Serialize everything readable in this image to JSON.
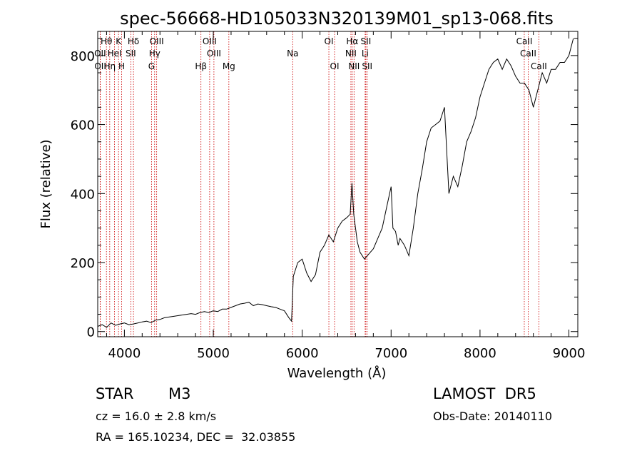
{
  "chart_data": {
    "type": "line",
    "title": "spec-56668-HD105033N320139M01_sp13-068.fits",
    "xlabel": "Wavelength (Å)",
    "ylabel": "Flux (relative)",
    "xlim": [
      3700,
      9100
    ],
    "ylim": [
      -15,
      870
    ],
    "xticks": [
      4000,
      5000,
      6000,
      7000,
      8000,
      9000
    ],
    "yticks": [
      0,
      200,
      400,
      600,
      800
    ],
    "grid": false,
    "line_color": "#000000",
    "marker_line_color": "#cc0000",
    "series": [
      {
        "x": [
          3700,
          3750,
          3800,
          3850,
          3900,
          3950,
          4000,
          4050,
          4100,
          4150,
          4200,
          4250,
          4300,
          4350,
          4400,
          4450,
          4500,
          4550,
          4600,
          4650,
          4700,
          4750,
          4800,
          4850,
          4900,
          4950,
          5000,
          5050,
          5100,
          5150,
          5200,
          5250,
          5300,
          5350,
          5400,
          5450,
          5500,
          5550,
          5600,
          5650,
          5700,
          5750,
          5800,
          5850,
          5880,
          5900,
          5950,
          6000,
          6050,
          6100,
          6150,
          6200,
          6250,
          6300,
          6350,
          6400,
          6450,
          6500,
          6540,
          6560,
          6580,
          6600,
          6620,
          6650,
          6700,
          6750,
          6800,
          6850,
          6900,
          6950,
          7000,
          7020,
          7050,
          7080,
          7100,
          7150,
          7200,
          7250,
          7300,
          7350,
          7400,
          7450,
          7500,
          7550,
          7600,
          7630,
          7650,
          7700,
          7750,
          7800,
          7850,
          7900,
          7950,
          8000,
          8050,
          8100,
          8150,
          8200,
          8250,
          8300,
          8350,
          8400,
          8450,
          8500,
          8550,
          8600,
          8650,
          8700,
          8750,
          8800,
          8850,
          8900,
          8950,
          9000,
          9050
        ],
        "values": [
          15,
          20,
          12,
          25,
          18,
          22,
          25,
          20,
          22,
          25,
          28,
          30,
          26,
          33,
          35,
          40,
          42,
          44,
          46,
          48,
          50,
          52,
          50,
          55,
          58,
          55,
          60,
          58,
          65,
          65,
          70,
          75,
          80,
          82,
          85,
          75,
          80,
          78,
          75,
          72,
          70,
          65,
          60,
          40,
          30,
          160,
          200,
          210,
          170,
          145,
          165,
          230,
          250,
          280,
          260,
          300,
          320,
          330,
          340,
          430,
          340,
          300,
          260,
          230,
          210,
          225,
          240,
          270,
          300,
          360,
          420,
          300,
          290,
          250,
          270,
          250,
          220,
          300,
          400,
          470,
          550,
          590,
          600,
          610,
          650,
          500,
          400,
          450,
          420,
          480,
          550,
          580,
          620,
          680,
          720,
          760,
          780,
          790,
          760,
          790,
          770,
          740,
          720,
          720,
          700,
          650,
          700,
          750,
          720,
          760,
          760,
          780,
          780,
          800,
          850
        ],
        "values_note": "rough",
        "name": ""
      }
    ]
  },
  "line_markers": [
    {
      "label": "Hθ",
      "wl": 3798,
      "row": 0
    },
    {
      "label": "OII",
      "wl": 3727,
      "row": 1
    },
    {
      "label": "OII",
      "wl": 3729,
      "row": 2
    },
    {
      "label": "HeI",
      "wl": 3889,
      "row": 1
    },
    {
      "label": "Hη",
      "wl": 3835,
      "row": 2
    },
    {
      "label": "K",
      "wl": 3934,
      "row": 0
    },
    {
      "label": "H",
      "wl": 3969,
      "row": 2
    },
    {
      "label": "Hδ",
      "wl": 4102,
      "row": 0
    },
    {
      "label": "SII",
      "wl": 4072,
      "row": 1
    },
    {
      "label": "OIII",
      "wl": 4363,
      "row": 0
    },
    {
      "label": "Hγ",
      "wl": 4340,
      "row": 1
    },
    {
      "label": "G",
      "wl": 4305,
      "row": 2
    },
    {
      "label": "Hβ",
      "wl": 4861,
      "row": 2
    },
    {
      "label": "OIII",
      "wl": 4959,
      "row": 0
    },
    {
      "label": "OIII",
      "wl": 5007,
      "row": 1
    },
    {
      "label": "Mg",
      "wl": 5175,
      "row": 2
    },
    {
      "label": "Na",
      "wl": 5893,
      "row": 1
    },
    {
      "label": "OI",
      "wl": 6300,
      "row": 0
    },
    {
      "label": "OI",
      "wl": 6364,
      "row": 2
    },
    {
      "label": "Hα",
      "wl": 6563,
      "row": 0
    },
    {
      "label": "NII",
      "wl": 6548,
      "row": 1
    },
    {
      "label": "NII",
      "wl": 6583,
      "row": 2
    },
    {
      "label": "SII",
      "wl": 6716,
      "row": 0
    },
    {
      "label": "Li",
      "wl": 6708,
      "row": 1
    },
    {
      "label": "SII",
      "wl": 6731,
      "row": 2
    },
    {
      "label": "CaII",
      "wl": 8498,
      "row": 0
    },
    {
      "label": "CaII",
      "wl": 8542,
      "row": 1
    },
    {
      "label": "CaII",
      "wl": 8662,
      "row": 2
    }
  ],
  "info": {
    "object_class": "STAR",
    "subclass": "M3",
    "cz": "cz = 16.0 ± 2.8 km/s",
    "coords": "RA = 165.10234, DEC =  32.03855",
    "survey": "LAMOST  DR5",
    "obs_date": "Obs-Date: 20140110"
  }
}
